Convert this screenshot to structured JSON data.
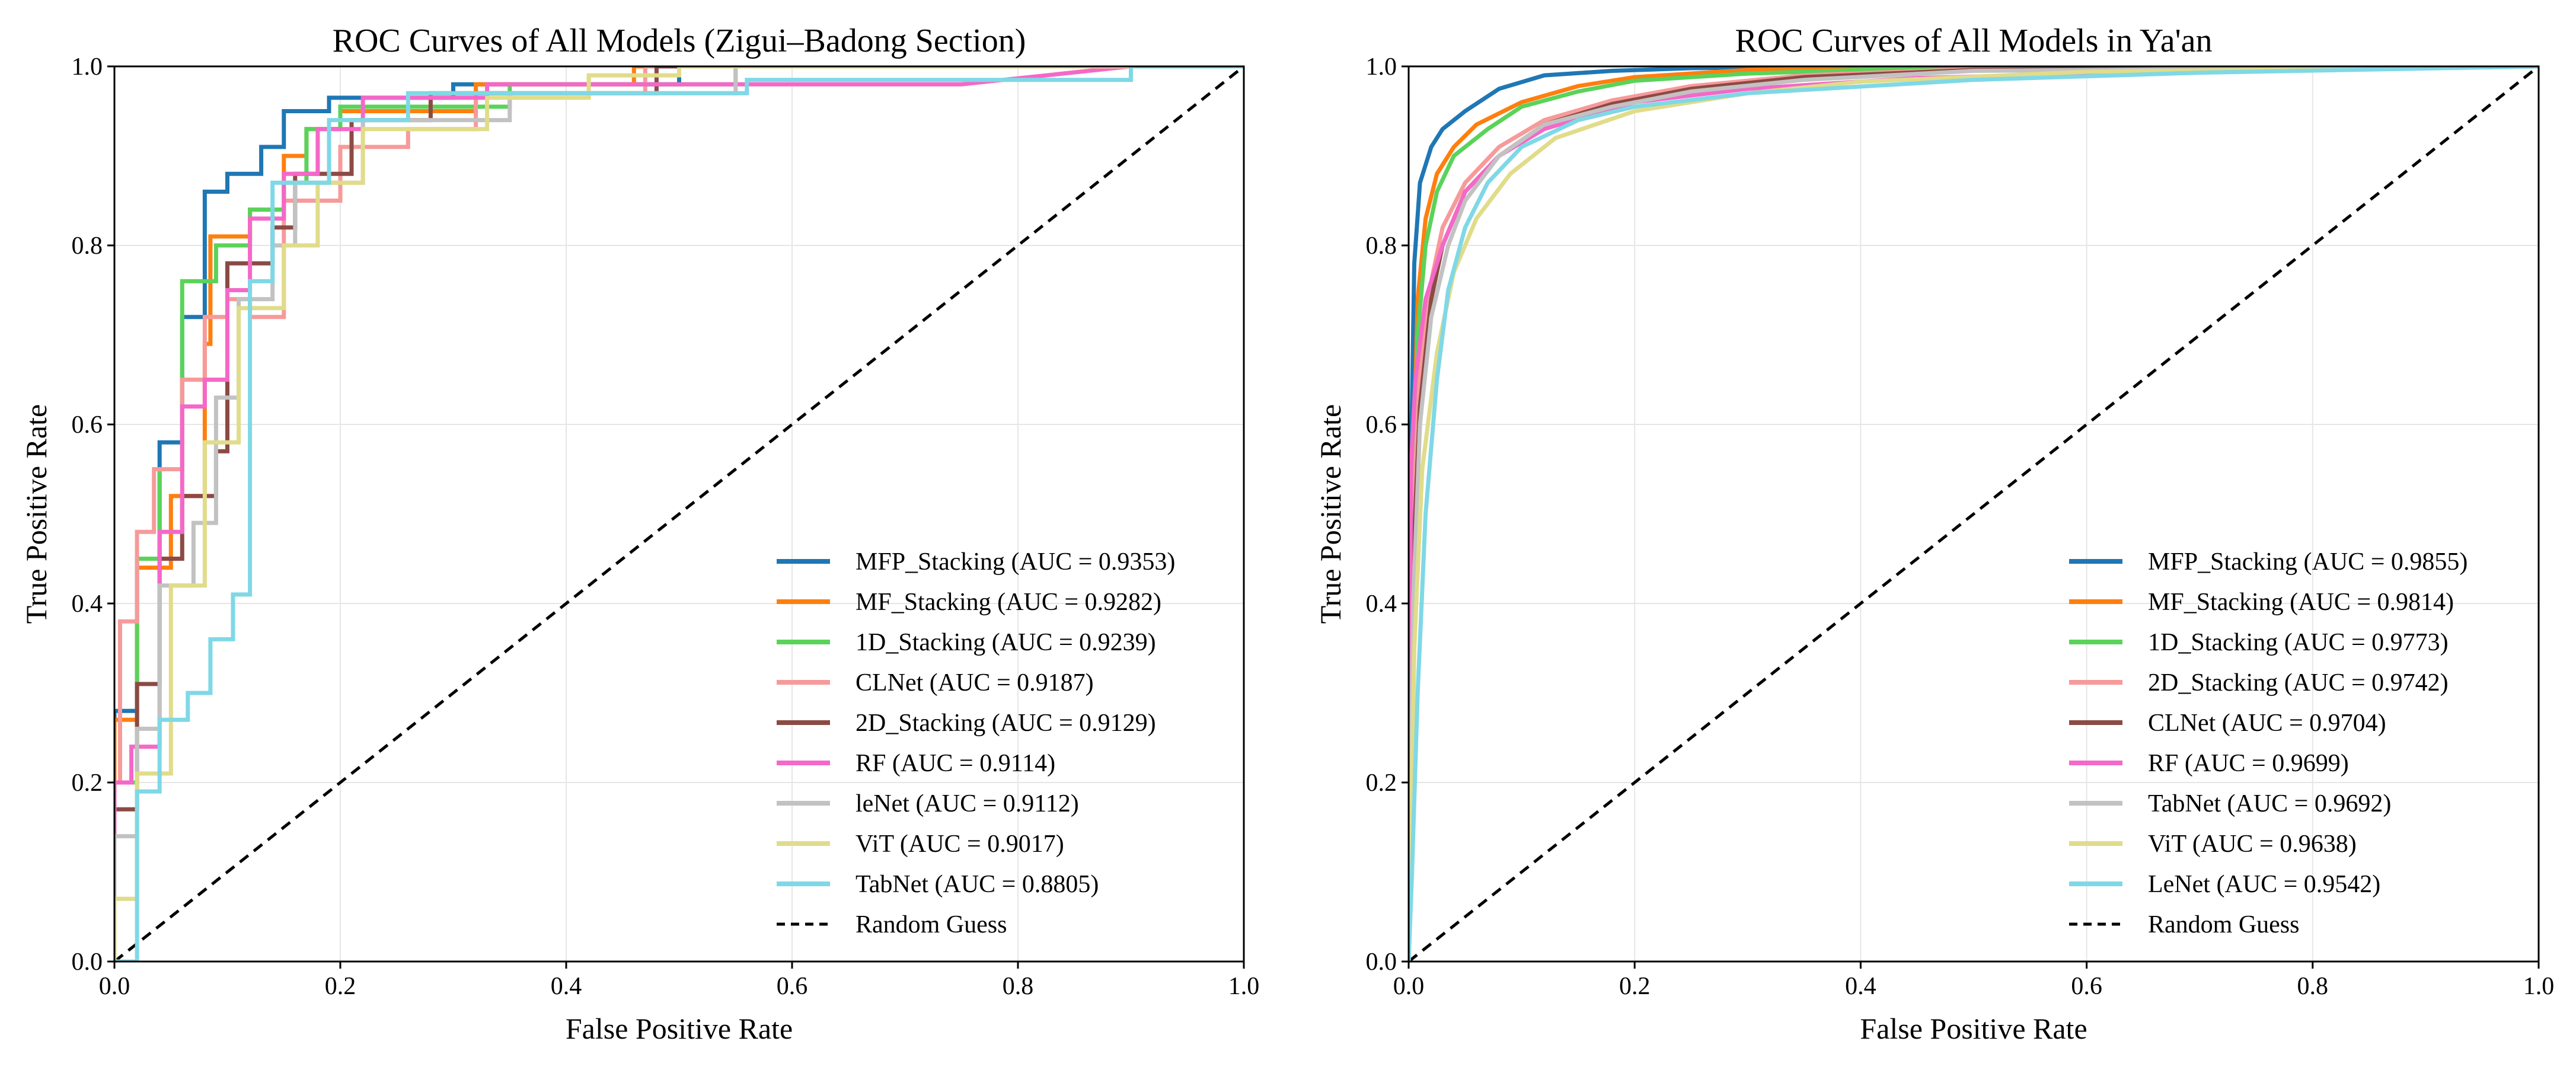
{
  "chart_data": [
    {
      "type": "line",
      "title": "ROC Curves of All Models (Zigui–Badong Section)",
      "xlabel": "False Positive Rate",
      "ylabel": "True Positive Rate",
      "xlim": [
        0,
        1
      ],
      "ylim": [
        0,
        1
      ],
      "xticks": [
        "0.0",
        "0.2",
        "0.4",
        "0.6",
        "0.8",
        "1.0"
      ],
      "yticks": [
        "0.0",
        "0.2",
        "0.4",
        "0.6",
        "0.8",
        "1.0"
      ],
      "grid": true,
      "legend_position": "lower-right",
      "series": [
        {
          "name": "MFP_Stacking",
          "label": "MFP_Stacking (AUC = 0.9353)",
          "color": "#1f77b4",
          "x": [
            0,
            0,
            0.02,
            0.02,
            0.04,
            0.04,
            0.06,
            0.06,
            0.08,
            0.08,
            0.1,
            0.1,
            0.13,
            0.13,
            0.15,
            0.15,
            0.19,
            0.19,
            0.3,
            0.3,
            0.5,
            0.5,
            1
          ],
          "y": [
            0,
            0.28,
            0.28,
            0.45,
            0.45,
            0.58,
            0.58,
            0.72,
            0.72,
            0.86,
            0.86,
            0.88,
            0.88,
            0.91,
            0.91,
            0.95,
            0.95,
            0.965,
            0.965,
            0.98,
            0.98,
            1,
            1
          ]
        },
        {
          "name": "MF_Stacking",
          "label": "MF_Stacking (AUC = 0.9282)",
          "color": "#ff7f0e",
          "x": [
            0,
            0,
            0.02,
            0.02,
            0.05,
            0.05,
            0.08,
            0.08,
            0.085,
            0.085,
            0.12,
            0.12,
            0.15,
            0.15,
            0.17,
            0.17,
            0.2,
            0.2,
            0.32,
            0.32,
            0.46,
            0.46,
            1
          ],
          "y": [
            0,
            0.27,
            0.27,
            0.44,
            0.44,
            0.52,
            0.52,
            0.69,
            0.69,
            0.81,
            0.81,
            0.84,
            0.84,
            0.9,
            0.9,
            0.93,
            0.93,
            0.95,
            0.95,
            0.98,
            0.98,
            1,
            1
          ]
        },
        {
          "name": "1D_Stacking",
          "label": "1D_Stacking (AUC = 0.9239)",
          "color": "#5ad35a",
          "x": [
            0,
            0,
            0.02,
            0.02,
            0.04,
            0.04,
            0.06,
            0.06,
            0.09,
            0.09,
            0.12,
            0.12,
            0.15,
            0.15,
            0.17,
            0.17,
            0.2,
            0.2,
            0.35,
            0.35,
            0.55,
            0.55,
            1
          ],
          "y": [
            0,
            0.2,
            0.2,
            0.45,
            0.45,
            0.55,
            0.55,
            0.76,
            0.76,
            0.8,
            0.8,
            0.84,
            0.84,
            0.87,
            0.87,
            0.93,
            0.93,
            0.955,
            0.955,
            0.98,
            0.98,
            1,
            1
          ]
        },
        {
          "name": "CLNet",
          "label": "CLNet (AUC = 0.9187)",
          "color": "#f79a9a",
          "x": [
            0,
            0,
            0.005,
            0.005,
            0.02,
            0.02,
            0.035,
            0.035,
            0.06,
            0.06,
            0.08,
            0.08,
            0.1,
            0.1,
            0.12,
            0.12,
            0.15,
            0.15,
            0.2,
            0.2,
            0.26,
            0.26,
            0.32,
            0.32,
            0.47,
            0.47,
            1
          ],
          "y": [
            0,
            0.2,
            0.2,
            0.38,
            0.38,
            0.48,
            0.48,
            0.55,
            0.55,
            0.65,
            0.65,
            0.72,
            0.72,
            0.74,
            0.74,
            0.72,
            0.72,
            0.85,
            0.85,
            0.91,
            0.91,
            0.93,
            0.93,
            0.97,
            0.97,
            1,
            1
          ]
        },
        {
          "name": "2D_Stacking",
          "label": "2D_Stacking (AUC = 0.9129)",
          "color": "#8c4a44",
          "x": [
            0,
            0,
            0.02,
            0.02,
            0.04,
            0.04,
            0.06,
            0.06,
            0.09,
            0.09,
            0.1,
            0.1,
            0.14,
            0.14,
            0.16,
            0.16,
            0.21,
            0.21,
            0.28,
            0.28,
            0.48,
            0.48,
            1
          ],
          "y": [
            0,
            0.17,
            0.17,
            0.31,
            0.31,
            0.45,
            0.45,
            0.52,
            0.52,
            0.57,
            0.57,
            0.78,
            0.78,
            0.82,
            0.82,
            0.88,
            0.88,
            0.94,
            0.94,
            0.97,
            0.97,
            1,
            1
          ]
        },
        {
          "name": "RF",
          "label": "RF (AUC = 0.9114)",
          "color": "#f468c8",
          "x": [
            0,
            0,
            0.015,
            0.015,
            0.04,
            0.04,
            0.06,
            0.06,
            0.08,
            0.08,
            0.1,
            0.1,
            0.12,
            0.12,
            0.15,
            0.15,
            0.18,
            0.18,
            0.22,
            0.22,
            0.33,
            0.33,
            0.75,
            0.9,
            1
          ],
          "y": [
            0,
            0.2,
            0.2,
            0.24,
            0.24,
            0.48,
            0.48,
            0.62,
            0.62,
            0.65,
            0.65,
            0.75,
            0.75,
            0.83,
            0.83,
            0.88,
            0.88,
            0.93,
            0.93,
            0.965,
            0.965,
            0.98,
            0.98,
            1,
            1
          ]
        },
        {
          "name": "leNet",
          "label": "leNet (AUC = 0.9112)",
          "color": "#c2c2c2",
          "x": [
            0,
            0,
            0.02,
            0.02,
            0.04,
            0.04,
            0.07,
            0.07,
            0.09,
            0.09,
            0.11,
            0.11,
            0.14,
            0.14,
            0.16,
            0.16,
            0.22,
            0.22,
            0.35,
            0.35,
            0.55,
            0.55,
            1
          ],
          "y": [
            0,
            0.14,
            0.14,
            0.26,
            0.26,
            0.42,
            0.42,
            0.49,
            0.49,
            0.63,
            0.63,
            0.74,
            0.74,
            0.8,
            0.8,
            0.87,
            0.87,
            0.94,
            0.94,
            0.97,
            0.97,
            1,
            1
          ]
        },
        {
          "name": "ViT",
          "label": "ViT (AUC = 0.9017)",
          "color": "#e0dc8a",
          "x": [
            0,
            0,
            0.02,
            0.02,
            0.05,
            0.05,
            0.08,
            0.08,
            0.11,
            0.11,
            0.15,
            0.15,
            0.18,
            0.18,
            0.22,
            0.22,
            0.33,
            0.33,
            0.42,
            0.42,
            0.5,
            0.5,
            1
          ],
          "y": [
            0,
            0.07,
            0.07,
            0.21,
            0.21,
            0.42,
            0.42,
            0.58,
            0.58,
            0.73,
            0.73,
            0.8,
            0.8,
            0.87,
            0.87,
            0.93,
            0.93,
            0.965,
            0.965,
            0.99,
            0.99,
            1,
            1
          ]
        },
        {
          "name": "TabNet",
          "label": "TabNet (AUC = 0.8805)",
          "color": "#7fd8e6",
          "x": [
            0,
            0.02,
            0.02,
            0.04,
            0.04,
            0.065,
            0.065,
            0.085,
            0.085,
            0.105,
            0.105,
            0.12,
            0.12,
            0.14,
            0.14,
            0.19,
            0.19,
            0.26,
            0.26,
            0.56,
            0.56,
            0.9,
            0.9,
            1
          ],
          "y": [
            0,
            0.0,
            0.19,
            0.19,
            0.27,
            0.27,
            0.3,
            0.3,
            0.36,
            0.36,
            0.41,
            0.41,
            0.76,
            0.76,
            0.87,
            0.87,
            0.94,
            0.94,
            0.97,
            0.97,
            0.985,
            0.985,
            1,
            1
          ]
        }
      ],
      "reference_line": {
        "name": "Random Guess",
        "label": "Random Guess",
        "color": "#000000",
        "x": [
          0,
          1
        ],
        "y": [
          0,
          1
        ]
      }
    },
    {
      "type": "line",
      "title": "ROC Curves of All Models in Ya'an",
      "xlabel": "False Positive Rate",
      "ylabel": "True Positive Rate",
      "xlim": [
        0,
        1
      ],
      "ylim": [
        0,
        1
      ],
      "xticks": [
        "0.0",
        "0.2",
        "0.4",
        "0.6",
        "0.8",
        "1.0"
      ],
      "yticks": [
        "0.0",
        "0.2",
        "0.4",
        "0.6",
        "0.8",
        "1.0"
      ],
      "grid": true,
      "legend_position": "lower-right",
      "series": [
        {
          "name": "MFP_Stacking",
          "label": "MFP_Stacking (AUC = 0.9855)",
          "color": "#1f77b4",
          "x": [
            0,
            0.002,
            0.005,
            0.01,
            0.02,
            0.03,
            0.05,
            0.08,
            0.12,
            0.18,
            0.25,
            0.4,
            0.6,
            1
          ],
          "y": [
            0,
            0.55,
            0.78,
            0.87,
            0.91,
            0.93,
            0.95,
            0.975,
            0.99,
            0.995,
            0.998,
            1,
            1,
            1
          ]
        },
        {
          "name": "MF_Stacking",
          "label": "MF_Stacking (AUC = 0.9814)",
          "color": "#ff7f0e",
          "x": [
            0,
            0.003,
            0.008,
            0.015,
            0.025,
            0.04,
            0.06,
            0.1,
            0.15,
            0.2,
            0.3,
            0.5,
            1
          ],
          "y": [
            0,
            0.5,
            0.74,
            0.83,
            0.88,
            0.91,
            0.935,
            0.96,
            0.978,
            0.988,
            0.996,
            1,
            1
          ]
        },
        {
          "name": "1D_Stacking",
          "label": "1D_Stacking (AUC = 0.9773)",
          "color": "#5ad35a",
          "x": [
            0,
            0.003,
            0.008,
            0.015,
            0.025,
            0.04,
            0.07,
            0.1,
            0.15,
            0.2,
            0.3,
            0.5,
            1
          ],
          "y": [
            0,
            0.45,
            0.7,
            0.8,
            0.86,
            0.9,
            0.93,
            0.955,
            0.972,
            0.984,
            0.992,
            1,
            1
          ]
        },
        {
          "name": "2D_Stacking",
          "label": "2D_Stacking (AUC = 0.9742)",
          "color": "#f79a9a",
          "x": [
            0,
            0.004,
            0.01,
            0.02,
            0.03,
            0.05,
            0.08,
            0.12,
            0.18,
            0.25,
            0.35,
            0.5,
            1
          ],
          "y": [
            0,
            0.5,
            0.66,
            0.76,
            0.82,
            0.87,
            0.91,
            0.94,
            0.962,
            0.978,
            0.99,
            0.997,
            1
          ]
        },
        {
          "name": "CLNet",
          "label": "CLNet (AUC = 0.9704)",
          "color": "#8c4a44",
          "x": [
            0,
            0.004,
            0.01,
            0.02,
            0.03,
            0.05,
            0.08,
            0.12,
            0.18,
            0.25,
            0.35,
            0.5,
            1
          ],
          "y": [
            0,
            0.45,
            0.62,
            0.74,
            0.8,
            0.86,
            0.9,
            0.935,
            0.958,
            0.975,
            0.988,
            0.996,
            1
          ]
        },
        {
          "name": "RF",
          "label": "RF (AUC = 0.9699)",
          "color": "#f468c8",
          "x": [
            0,
            0.002,
            0.006,
            0.015,
            0.03,
            0.05,
            0.08,
            0.12,
            0.2,
            0.3,
            0.45,
            0.7
          ],
          "y": [
            0,
            0.55,
            0.65,
            0.74,
            0.8,
            0.86,
            0.9,
            0.93,
            0.96,
            0.975,
            0.987,
            0.995
          ]
        },
        {
          "name": "TabNet",
          "label": "TabNet (AUC = 0.9692)",
          "color": "#c2c2c2",
          "x": [
            0,
            0.004,
            0.01,
            0.02,
            0.035,
            0.05,
            0.08,
            0.12,
            0.18,
            0.25,
            0.35,
            0.5,
            1
          ],
          "y": [
            0,
            0.4,
            0.6,
            0.72,
            0.8,
            0.85,
            0.9,
            0.935,
            0.955,
            0.972,
            0.985,
            0.995,
            1
          ]
        },
        {
          "name": "ViT",
          "label": "ViT (AUC = 0.9638)",
          "color": "#e0dc8a",
          "x": [
            0,
            0.005,
            0.012,
            0.025,
            0.04,
            0.06,
            0.09,
            0.13,
            0.2,
            0.3,
            0.4,
            0.6,
            1
          ],
          "y": [
            0,
            0.35,
            0.55,
            0.68,
            0.77,
            0.83,
            0.88,
            0.92,
            0.95,
            0.97,
            0.983,
            0.994,
            1
          ]
        },
        {
          "name": "LeNet",
          "label": "LeNet (AUC = 0.9542)",
          "color": "#7fd8e6",
          "x": [
            0,
            0.003,
            0.008,
            0.015,
            0.025,
            0.035,
            0.05,
            0.07,
            0.1,
            0.15,
            0.2,
            0.3,
            0.5,
            0.7,
            1
          ],
          "y": [
            0,
            0.1,
            0.3,
            0.5,
            0.65,
            0.75,
            0.82,
            0.87,
            0.91,
            0.94,
            0.955,
            0.97,
            0.985,
            0.993,
            1
          ]
        }
      ],
      "reference_line": {
        "name": "Random Guess",
        "label": "Random Guess",
        "color": "#000000",
        "x": [
          0,
          1
        ],
        "y": [
          0,
          1
        ]
      }
    }
  ]
}
